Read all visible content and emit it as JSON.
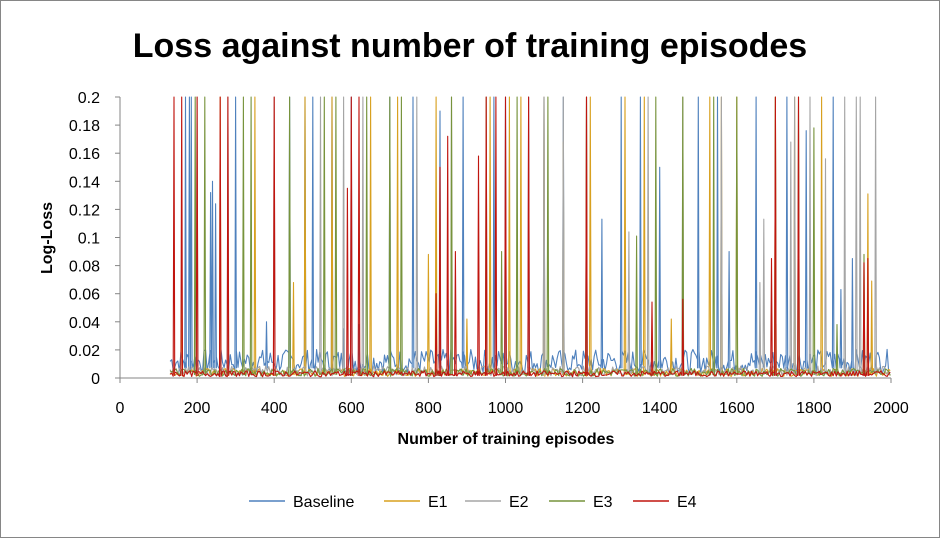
{
  "chart_data": {
    "type": "line",
    "title": "Loss against number of training episodes",
    "xlabel": "Number of training episodes",
    "ylabel": "Log-Loss",
    "xlim": [
      0,
      2000
    ],
    "ylim": [
      0,
      0.2
    ],
    "x_ticks": [
      "0",
      "200",
      "400",
      "600",
      "800",
      "1000",
      "1200",
      "1400",
      "1600",
      "1800",
      "2000"
    ],
    "y_ticks": [
      "0",
      "0.02",
      "0.04",
      "0.06",
      "0.08",
      "0.1",
      "0.12",
      "0.14",
      "0.16",
      "0.18",
      "0.2"
    ],
    "legend_position": "bottom",
    "grid": false,
    "series": [
      {
        "name": "Baseline",
        "color": "#4F81BD",
        "baseline": 0.012,
        "spikes": [
          [
            170,
            0.2
          ],
          [
            180,
            0.2
          ],
          [
            185,
            0.2
          ],
          [
            235,
            0.132
          ],
          [
            240,
            0.14
          ],
          [
            248,
            0.124
          ],
          [
            300,
            0.2
          ],
          [
            380,
            0.04
          ],
          [
            440,
            0.2
          ],
          [
            480,
            0.2
          ],
          [
            500,
            0.2
          ],
          [
            550,
            0.2
          ],
          [
            580,
            0.035
          ],
          [
            600,
            0.2
          ],
          [
            620,
            0.038
          ],
          [
            700,
            0.2
          ],
          [
            760,
            0.2
          ],
          [
            830,
            0.19
          ],
          [
            890,
            0.2
          ],
          [
            970,
            0.2
          ],
          [
            1000,
            0.2
          ],
          [
            1060,
            0.2
          ],
          [
            1100,
            0.2
          ],
          [
            1150,
            0.2
          ],
          [
            1250,
            0.113
          ],
          [
            1300,
            0.2
          ],
          [
            1350,
            0.2
          ],
          [
            1400,
            0.15
          ],
          [
            1500,
            0.2
          ],
          [
            1550,
            0.2
          ],
          [
            1580,
            0.09
          ],
          [
            1650,
            0.2
          ],
          [
            1730,
            0.2
          ],
          [
            1780,
            0.176
          ],
          [
            1850,
            0.2
          ],
          [
            1870,
            0.063
          ],
          [
            1900,
            0.085
          ]
        ]
      },
      {
        "name": "E1",
        "color": "#D8A01F",
        "baseline": 0.004,
        "spikes": [
          [
            160,
            0.065
          ],
          [
            260,
            0.2
          ],
          [
            350,
            0.2
          ],
          [
            450,
            0.068
          ],
          [
            480,
            0.2
          ],
          [
            550,
            0.2
          ],
          [
            650,
            0.2
          ],
          [
            720,
            0.2
          ],
          [
            800,
            0.088
          ],
          [
            820,
            0.2
          ],
          [
            900,
            0.042
          ],
          [
            960,
            0.2
          ],
          [
            1010,
            0.2
          ],
          [
            1040,
            0.2
          ],
          [
            1100,
            0.2
          ],
          [
            1150,
            0.168
          ],
          [
            1220,
            0.2
          ],
          [
            1310,
            0.2
          ],
          [
            1360,
            0.2
          ],
          [
            1430,
            0.042
          ],
          [
            1530,
            0.2
          ],
          [
            1560,
            0.2
          ],
          [
            1600,
            0.2
          ],
          [
            1700,
            0.2
          ],
          [
            1750,
            0.2
          ],
          [
            1820,
            0.2
          ],
          [
            1940,
            0.131
          ],
          [
            1950,
            0.069
          ]
        ]
      },
      {
        "name": "E2",
        "color": "#A5A5A5",
        "baseline": 0.005,
        "spikes": [
          [
            200,
            0.2
          ],
          [
            280,
            0.2
          ],
          [
            400,
            0.2
          ],
          [
            520,
            0.2
          ],
          [
            580,
            0.2
          ],
          [
            630,
            0.2
          ],
          [
            770,
            0.2
          ],
          [
            860,
            0.2
          ],
          [
            950,
            0.115
          ],
          [
            1100,
            0.2
          ],
          [
            1150,
            0.2
          ],
          [
            1210,
            0.2
          ],
          [
            1320,
            0.104
          ],
          [
            1370,
            0.2
          ],
          [
            1460,
            0.2
          ],
          [
            1560,
            0.2
          ],
          [
            1660,
            0.068
          ],
          [
            1670,
            0.113
          ],
          [
            1740,
            0.168
          ],
          [
            1750,
            0.2
          ],
          [
            1790,
            0.2
          ],
          [
            1830,
            0.156
          ],
          [
            1880,
            0.2
          ],
          [
            1910,
            0.2
          ],
          [
            1920,
            0.2
          ],
          [
            1960,
            0.2
          ]
        ]
      },
      {
        "name": "E3",
        "color": "#77933C",
        "baseline": 0.004,
        "spikes": [
          [
            195,
            0.2
          ],
          [
            220,
            0.2
          ],
          [
            320,
            0.2
          ],
          [
            340,
            0.2
          ],
          [
            440,
            0.2
          ],
          [
            530,
            0.2
          ],
          [
            560,
            0.2
          ],
          [
            640,
            0.2
          ],
          [
            700,
            0.2
          ],
          [
            730,
            0.2
          ],
          [
            860,
            0.2
          ],
          [
            950,
            0.2
          ],
          [
            990,
            0.09
          ],
          [
            1030,
            0.2
          ],
          [
            1110,
            0.2
          ],
          [
            1210,
            0.2
          ],
          [
            1340,
            0.101
          ],
          [
            1390,
            0.2
          ],
          [
            1460,
            0.2
          ],
          [
            1540,
            0.2
          ],
          [
            1600,
            0.2
          ],
          [
            1700,
            0.2
          ],
          [
            1760,
            0.2
          ],
          [
            1800,
            0.178
          ],
          [
            1860,
            0.038
          ],
          [
            1930,
            0.088
          ]
        ]
      },
      {
        "name": "E4",
        "color": "#C0150F",
        "baseline": 0.003,
        "spikes": [
          [
            140,
            0.2
          ],
          [
            160,
            0.2
          ],
          [
            200,
            0.2
          ],
          [
            260,
            0.2
          ],
          [
            280,
            0.2
          ],
          [
            400,
            0.2
          ],
          [
            590,
            0.135
          ],
          [
            600,
            0.2
          ],
          [
            620,
            0.2
          ],
          [
            820,
            0.06
          ],
          [
            830,
            0.15
          ],
          [
            850,
            0.172
          ],
          [
            870,
            0.09
          ],
          [
            930,
            0.158
          ],
          [
            950,
            0.2
          ],
          [
            975,
            0.2
          ],
          [
            1000,
            0.2
          ],
          [
            1060,
            0.2
          ],
          [
            1210,
            0.2
          ],
          [
            1380,
            0.054
          ],
          [
            1460,
            0.056
          ],
          [
            1690,
            0.085
          ],
          [
            1700,
            0.2
          ],
          [
            1760,
            0.2
          ],
          [
            1930,
            0.082
          ],
          [
            1940,
            0.085
          ]
        ]
      }
    ]
  }
}
